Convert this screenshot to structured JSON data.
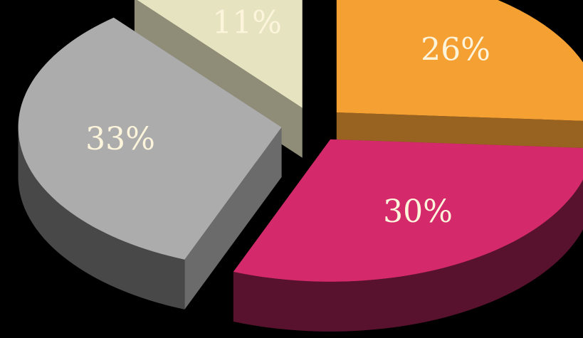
{
  "chart_data": {
    "type": "pie",
    "style": "3d-exploded",
    "slices": [
      {
        "label": "26%",
        "value": 26,
        "color": "#f5a033"
      },
      {
        "label": "30%",
        "value": 30,
        "color": "#d42a6c"
      },
      {
        "label": "33%",
        "value": 33,
        "color": "#acacac"
      },
      {
        "label": "11%",
        "value": 11,
        "color": "#e6e4c0"
      }
    ],
    "label_color": "#fdf4dc",
    "background": "#000000",
    "title": "",
    "legend": "none"
  }
}
